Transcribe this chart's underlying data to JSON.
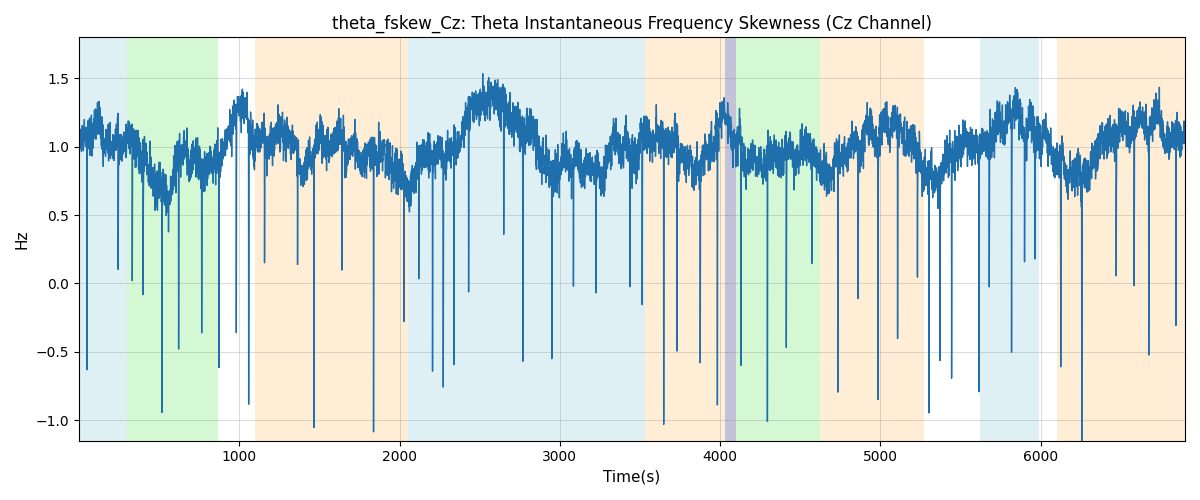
{
  "title": "theta_fskew_Cz: Theta Instantaneous Frequency Skewness (Cz Channel)",
  "xlabel": "Time(s)",
  "ylabel": "Hz",
  "ylim": [
    -1.15,
    1.8
  ],
  "xlim": [
    0,
    6900
  ],
  "bands": [
    [
      0,
      300,
      "#add8e6",
      0.38
    ],
    [
      300,
      870,
      "#90ee90",
      0.38
    ],
    [
      1100,
      2050,
      "#ffd59e",
      0.42
    ],
    [
      2050,
      3530,
      "#add8e6",
      0.38
    ],
    [
      3530,
      4030,
      "#ffd59e",
      0.42
    ],
    [
      4030,
      4100,
      "#9090b8",
      0.55
    ],
    [
      4100,
      4620,
      "#90ee90",
      0.38
    ],
    [
      4620,
      5270,
      "#ffd59e",
      0.42
    ],
    [
      5620,
      5990,
      "#add8e6",
      0.38
    ],
    [
      6100,
      6900,
      "#ffd59e",
      0.42
    ]
  ],
  "line_color": "#1f6fad",
  "line_width": 1.0,
  "xticks": [
    1000,
    2000,
    3000,
    4000,
    5000,
    6000
  ],
  "yticks": [
    -1.0,
    -0.5,
    0.0,
    0.5,
    1.0,
    1.5
  ],
  "title_fontsize": 12,
  "label_fontsize": 11
}
